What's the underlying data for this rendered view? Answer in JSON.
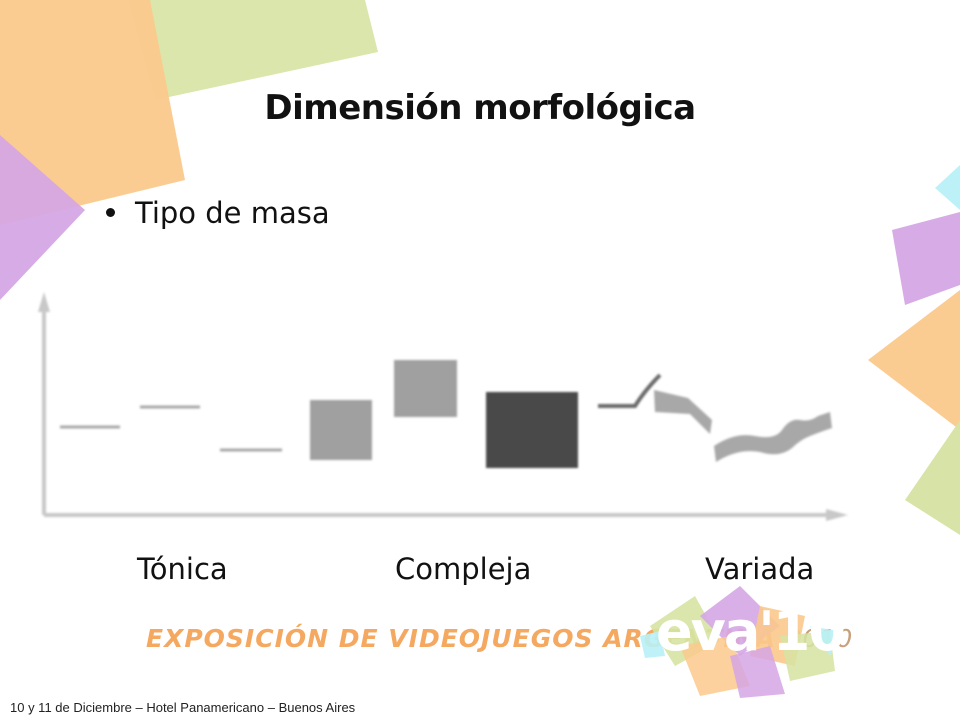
{
  "slide": {
    "title": "Dimensión morfológica",
    "bullet": "Tipo de masa",
    "categories": [
      "Tónica",
      "Compleja",
      "Variada"
    ],
    "event_banner": "EXPOSICIÓN DE VIDEOJUEGOS ARGENTINA",
    "event_year": "2010",
    "logo_text": "eva'10",
    "footer": "10 y 11 de Diciembre – Hotel Panamericano – Buenos Aires"
  },
  "colors": {
    "orange": "#fbc98c",
    "green": "#d6e3a2",
    "purple": "#d5a6e4",
    "cyan": "#b8f1f7",
    "light_gray": "#a0a0a0",
    "dark_gray": "#4a4a4a",
    "axis": "#cccccc"
  }
}
